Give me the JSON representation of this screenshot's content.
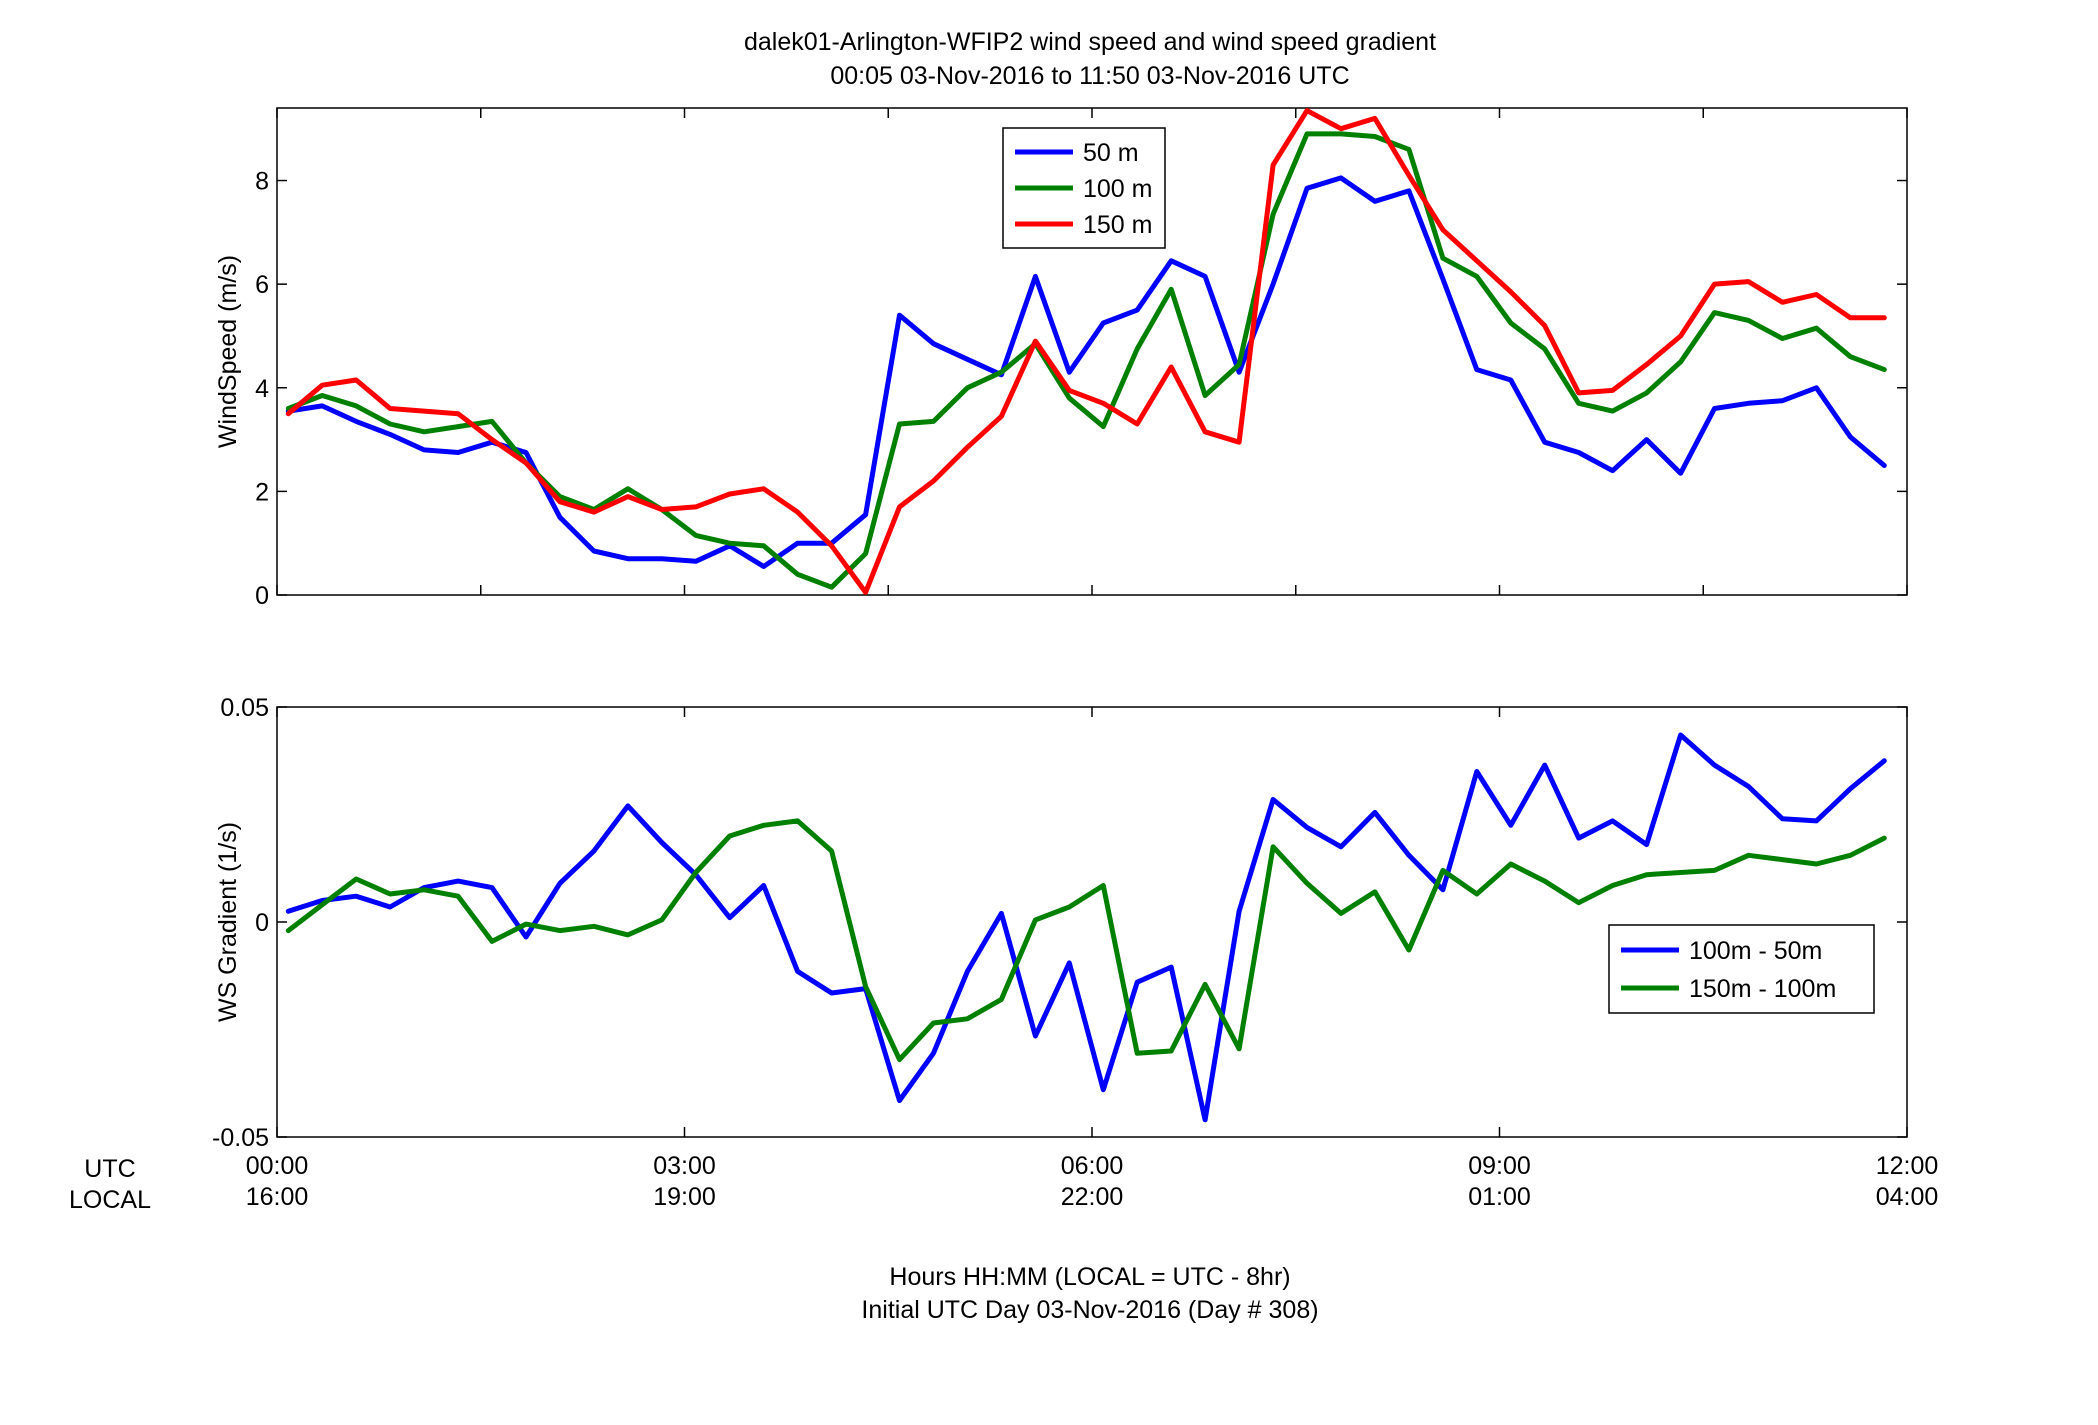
{
  "title_line1": "dalek01-Arlington-WFIP2  wind speed and wind speed gradient",
  "title_line2": "00:05 03-Nov-2016 to 11:50 03-Nov-2016  UTC",
  "xlabel_line1": "Hours HH:MM  (LOCAL = UTC - 8hr)",
  "xlabel_line2": "Initial UTC Day 03-Nov-2016 (Day # 308)",
  "row_label_utc": "UTC",
  "row_label_local": "LOCAL",
  "x_ticks": [
    {
      "value": 0,
      "utc": "00:00",
      "local": "16:00"
    },
    {
      "value": 3,
      "utc": "03:00",
      "local": "19:00"
    },
    {
      "value": 6,
      "utc": "06:00",
      "local": "22:00"
    },
    {
      "value": 9,
      "utc": "09:00",
      "local": "01:00"
    },
    {
      "value": 12,
      "utc": "12:00",
      "local": "04:00"
    }
  ],
  "chart_data": [
    {
      "type": "line",
      "ylabel": "WindSpeed (m/s)",
      "xlim": [
        0,
        12
      ],
      "ylim": [
        0,
        9.4
      ],
      "yticks": [
        0,
        2,
        4,
        6,
        8
      ],
      "yticklabels": [
        "0",
        "2",
        "4",
        "6",
        "8"
      ],
      "legend_position": "top-center",
      "x": [
        0.083,
        0.333,
        0.583,
        0.833,
        1.083,
        1.333,
        1.583,
        1.833,
        2.083,
        2.333,
        2.583,
        2.833,
        3.083,
        3.333,
        3.583,
        3.833,
        4.083,
        4.333,
        4.583,
        4.833,
        5.083,
        5.333,
        5.583,
        5.833,
        6.083,
        6.333,
        6.583,
        6.833,
        7.083,
        7.333,
        7.583,
        7.833,
        8.083,
        8.333,
        8.583,
        8.833,
        9.083,
        9.333,
        9.583,
        9.833,
        10.083,
        10.333,
        10.583,
        10.833,
        11.083,
        11.333,
        11.583,
        11.833
      ],
      "series": [
        {
          "name": "50 m",
          "color": "#0000ff",
          "values": [
            3.55,
            3.65,
            3.35,
            3.1,
            2.8,
            2.75,
            2.95,
            2.75,
            1.5,
            0.85,
            0.7,
            0.7,
            0.65,
            0.95,
            0.55,
            1.0,
            1.0,
            1.55,
            5.4,
            4.85,
            4.55,
            4.25,
            6.15,
            4.3,
            5.25,
            5.5,
            6.45,
            6.15,
            4.3,
            6.0,
            7.85,
            8.05,
            7.6,
            7.8,
            6.1,
            4.35,
            4.15,
            2.95,
            2.75,
            2.4,
            3.0,
            2.35,
            3.6,
            3.7,
            3.75,
            4.0,
            3.05,
            2.5
          ]
        },
        {
          "name": "100 m",
          "color": "#008000",
          "values": [
            3.6,
            3.85,
            3.65,
            3.3,
            3.15,
            3.25,
            3.35,
            2.55,
            1.9,
            1.65,
            2.05,
            1.65,
            1.15,
            1.0,
            0.95,
            0.4,
            0.15,
            0.8,
            3.3,
            3.35,
            4.0,
            4.3,
            4.85,
            3.8,
            3.25,
            4.75,
            5.9,
            3.85,
            4.45,
            7.35,
            8.9,
            8.9,
            8.85,
            8.6,
            6.5,
            6.15,
            5.25,
            4.75,
            3.7,
            3.55,
            3.9,
            4.5,
            5.45,
            5.3,
            4.95,
            5.15,
            4.6,
            4.35
          ]
        },
        {
          "name": "150 m",
          "color": "#ff0000",
          "values": [
            3.5,
            4.05,
            4.15,
            3.6,
            3.55,
            3.5,
            3.0,
            2.55,
            1.8,
            1.6,
            1.9,
            1.65,
            1.7,
            1.95,
            2.05,
            1.6,
            0.95,
            0.05,
            1.7,
            2.2,
            2.85,
            3.45,
            4.9,
            3.95,
            3.7,
            3.3,
            4.4,
            3.15,
            2.95,
            8.3,
            9.35,
            9.0,
            9.2,
            8.1,
            7.05,
            6.45,
            5.85,
            5.2,
            3.9,
            3.95,
            4.45,
            5.0,
            6.0,
            6.05,
            5.65,
            5.8,
            5.35,
            5.35
          ]
        }
      ]
    },
    {
      "type": "line",
      "ylabel": "WS Gradient (1/s)",
      "xlim": [
        0,
        12
      ],
      "ylim": [
        -0.05,
        0.05
      ],
      "yticks": [
        -0.05,
        0,
        0.05
      ],
      "yticklabels": [
        "-0.05",
        "0",
        "0.05"
      ],
      "legend_position": "middle-right",
      "x": [
        0.083,
        0.333,
        0.583,
        0.833,
        1.083,
        1.333,
        1.583,
        1.833,
        2.083,
        2.333,
        2.583,
        2.833,
        3.083,
        3.333,
        3.583,
        3.833,
        4.083,
        4.333,
        4.583,
        4.833,
        5.083,
        5.333,
        5.583,
        5.833,
        6.083,
        6.333,
        6.583,
        6.833,
        7.083,
        7.333,
        7.583,
        7.833,
        8.083,
        8.333,
        8.583,
        8.833,
        9.083,
        9.333,
        9.583,
        9.833,
        10.083,
        10.333,
        10.583,
        10.833,
        11.083,
        11.333,
        11.583,
        11.833
      ],
      "series": [
        {
          "name": "100m - 50m",
          "color": "#0000ff",
          "values": [
            0.0025,
            0.005,
            0.006,
            0.0035,
            0.008,
            0.0095,
            0.008,
            -0.0035,
            0.009,
            0.0165,
            0.027,
            0.0185,
            0.011,
            0.001,
            0.0085,
            -0.0115,
            -0.0165,
            -0.0155,
            -0.0415,
            -0.0305,
            -0.0115,
            0.002,
            -0.0265,
            -0.0095,
            -0.039,
            -0.014,
            -0.0105,
            -0.046,
            0.0025,
            0.0285,
            0.022,
            0.0175,
            0.0255,
            0.0155,
            0.0075,
            0.035,
            0.0225,
            0.0365,
            0.0195,
            0.0235,
            0.018,
            0.0435,
            0.0365,
            0.0315,
            0.024,
            0.0235,
            0.031,
            0.0375
          ]
        },
        {
          "name": "150m - 100m",
          "color": "#008000",
          "values": [
            -0.002,
            0.004,
            0.01,
            0.0065,
            0.0075,
            0.006,
            -0.0045,
            -0.0005,
            -0.002,
            -0.001,
            -0.003,
            0.0005,
            0.0115,
            0.02,
            0.0225,
            0.0235,
            0.0165,
            -0.015,
            -0.032,
            -0.0235,
            -0.0225,
            -0.018,
            0.0005,
            0.0035,
            0.0085,
            -0.0305,
            -0.03,
            -0.0145,
            -0.0295,
            0.0175,
            0.009,
            0.002,
            0.007,
            -0.0065,
            0.012,
            0.0065,
            0.0135,
            0.0095,
            0.0045,
            0.0085,
            0.011,
            0.0115,
            0.012,
            0.0155,
            0.0145,
            0.0135,
            0.0155,
            0.0195
          ]
        }
      ]
    }
  ]
}
